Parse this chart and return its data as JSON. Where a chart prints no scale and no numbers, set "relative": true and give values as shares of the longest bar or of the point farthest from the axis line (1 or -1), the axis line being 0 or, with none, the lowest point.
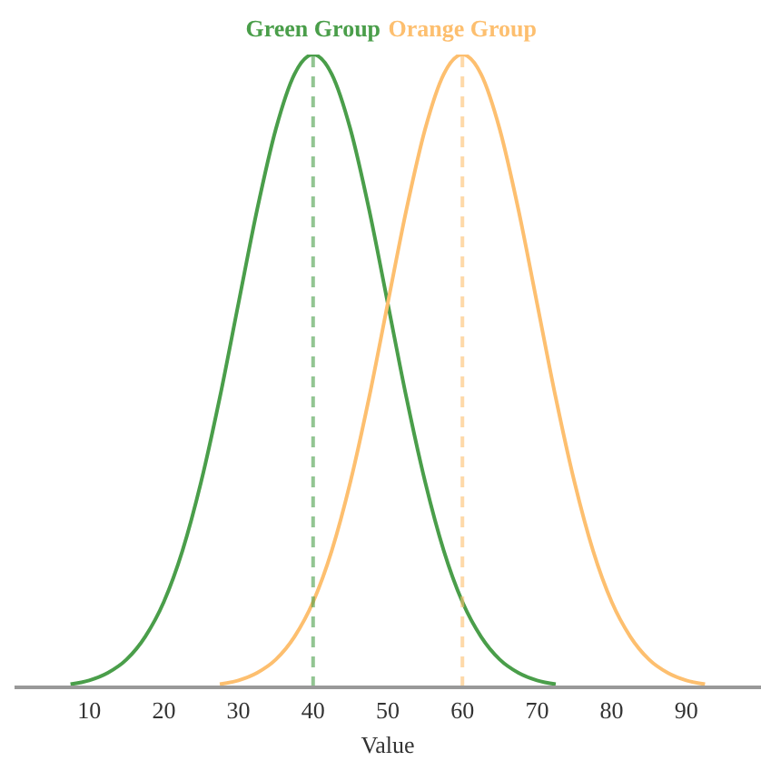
{
  "chart_data": {
    "type": "line",
    "relative": true,
    "xlabel": "Value",
    "series": [
      {
        "color": "#4a9e4a",
        "x": [
          7.5,
          10,
          12.5,
          15,
          17.5,
          20,
          22.5,
          25,
          27.5,
          30,
          32.5,
          35,
          37.5,
          40,
          42.5,
          45,
          47.5,
          50,
          52.5,
          55,
          57.5,
          60,
          62.5,
          65,
          67.5,
          70,
          72.5
        ],
        "values": [
          0.005,
          0.011,
          0.023,
          0.044,
          0.08,
          0.135,
          0.216,
          0.325,
          0.458,
          0.607,
          0.755,
          0.882,
          0.969,
          1,
          0.969,
          0.882,
          0.755,
          0.607,
          0.458,
          0.325,
          0.216,
          0.135,
          0.08,
          0.044,
          0.023,
          0.011,
          0.005
        ]
      },
      {
        "color": "#fdbf6f",
        "x": [
          27.5,
          30,
          32.5,
          35,
          37.5,
          40,
          42.5,
          45,
          47.5,
          50,
          52.5,
          55,
          57.5,
          60,
          62.5,
          65,
          67.5,
          70,
          72.5,
          75,
          77.5,
          80,
          82.5,
          85,
          87.5,
          90,
          92.5
        ],
        "values": [
          0.005,
          0.011,
          0.023,
          0.044,
          0.08,
          0.135,
          0.216,
          0.325,
          0.458,
          0.607,
          0.755,
          0.882,
          0.969,
          1,
          0.969,
          0.882,
          0.755,
          0.607,
          0.458,
          0.325,
          0.216,
          0.135,
          0.08,
          0.044,
          0.023,
          0.011,
          0.005
        ]
      }
    ],
    "xlim": [
      0,
      100
    ],
    "xticks": [
      10,
      20,
      30,
      40,
      50,
      60,
      70,
      80,
      90
    ],
    "ref_lines": [
      {
        "axis": "x",
        "value": 40,
        "label": "Green Group",
        "color": "#4a9e4a",
        "line_style": "dashed"
      },
      {
        "axis": "x",
        "value": 60,
        "label": "Orange Group",
        "color": "#fdbf6f",
        "line_style": "dashed"
      }
    ],
    "grid": false,
    "legend": false,
    "marker": "none",
    "line_style": "solid"
  }
}
